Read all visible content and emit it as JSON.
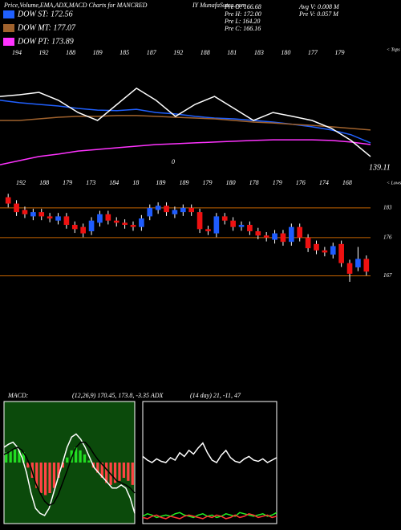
{
  "header": {
    "title": "Price,Volume,EMA,ADX,MACD Charts for MANCRED",
    "title2": "IY MunafaSutra.com",
    "stats_left": [
      "Pre  O: 166.68",
      "Pre  H: 172.00",
      "Pre  L: 164.20",
      "Pre  C: 166.16"
    ],
    "stats_right": [
      "Avg  V: 0.008 M",
      "Pre  V: 0.057 M"
    ],
    "macd_label": "MACD:",
    "macd_values": "(12,26,9) 170.45, 173.8, -3.35 ADX",
    "adx_values": "(14 day) 21, -11, 47"
  },
  "chart_data": [
    {
      "type": "line",
      "ylim": [
        135,
        200
      ],
      "tops_label": "< Tops",
      "lows_label": "< Lows",
      "tops": [
        "194",
        "192",
        "188",
        "189",
        "185",
        "187",
        "192",
        "188",
        "181",
        "183",
        "180",
        "177",
        "179"
      ],
      "lows": [
        "192",
        "188",
        "179",
        "173",
        "184",
        "18",
        "189",
        "189",
        "179",
        "180",
        "178",
        "179",
        "176",
        "174",
        "168"
      ],
      "annotations": [
        "0",
        "139.11"
      ],
      "series": [
        {
          "name": "DOW ST: 172.56",
          "color": "#2060ff",
          "values": [
            170.5,
            169.3,
            168.5,
            167.7,
            166.5,
            165.7,
            165.4,
            166.1,
            164.5,
            163.8,
            162.6,
            161.8,
            161.4,
            160.6,
            159.8,
            158.7,
            157.5,
            155.9,
            153.6,
            149.6
          ]
        },
        {
          "name": "DOW MT: 177.07",
          "color": "#a0622d",
          "values": [
            160.6,
            160.6,
            161.4,
            162.2,
            162.6,
            162.6,
            163,
            163,
            162.6,
            162.2,
            161.8,
            161.4,
            160.6,
            159.8,
            159.4,
            158.7,
            158.2,
            157.5,
            156.7,
            155.9
          ]
        },
        {
          "name": "DOW PT: 173.89",
          "color": "#ff33ff",
          "values": [
            138.9,
            140.9,
            142.9,
            144.1,
            145.6,
            146.4,
            147.2,
            148,
            148.8,
            149.2,
            149.6,
            150,
            150.4,
            150.8,
            151.1,
            151.1,
            151.1,
            150.8,
            150,
            148.8
          ]
        },
        {
          "color": "#ffffff",
          "values": [
            172.4,
            173.2,
            174.4,
            170.5,
            164.5,
            160.6,
            168.5,
            176.4,
            170.5,
            162.6,
            168.5,
            172.4,
            166.5,
            160.6,
            164.5,
            162.6,
            160.6,
            156.7,
            150.8,
            142.9
          ]
        }
      ]
    },
    {
      "type": "candlestick",
      "ylim": [
        162,
        187.5
      ],
      "yticks": [
        183,
        176,
        167
      ],
      "up_color": "#1e5cff",
      "down_color": "#ee1111",
      "grid_color": "#c86400",
      "open": [
        185.5,
        184,
        182.5,
        181,
        182,
        181,
        180,
        181,
        179,
        178.5,
        177.5,
        179.5,
        181.5,
        180,
        179.5,
        179,
        178.5,
        181,
        182.5,
        183.5,
        181.5,
        182,
        183,
        182,
        178,
        177,
        181,
        180,
        178.5,
        179,
        177.5,
        176.5,
        175.5,
        177,
        175,
        178.5,
        176,
        174.5,
        173,
        172,
        174.5,
        170,
        169,
        171
      ],
      "high": [
        186.3,
        184.8,
        183.3,
        182.8,
        182.8,
        181.8,
        181.8,
        181.8,
        179.8,
        179.3,
        180.8,
        182.3,
        182.3,
        180.8,
        180.3,
        179.8,
        181.3,
        183.8,
        184.3,
        184.3,
        183.3,
        183.8,
        183.8,
        182.8,
        178.8,
        181.8,
        181.8,
        180.8,
        179.8,
        179.8,
        178.3,
        177.3,
        177.8,
        177.8,
        179.3,
        179.3,
        176.8,
        175.3,
        173.8,
        174.8,
        175.3,
        170.8,
        173.8,
        171.8
      ],
      "low": [
        183.1,
        181.1,
        180.6,
        180.1,
        180.1,
        179.6,
        179.1,
        178.1,
        177.1,
        176.1,
        176.6,
        178.6,
        179.1,
        178.6,
        178.1,
        177.6,
        177.6,
        180.1,
        181.6,
        181.1,
        180.6,
        181.1,
        181.1,
        177.1,
        176.6,
        176.1,
        179.1,
        177.6,
        177.6,
        176.6,
        175.6,
        175.1,
        174.6,
        174.1,
        174.1,
        175.1,
        172.6,
        172.1,
        171.6,
        171.1,
        169.1,
        165.6,
        168.1,
        167.1
      ],
      "close": [
        184,
        182,
        181.5,
        182,
        181,
        180.5,
        181,
        179,
        178,
        177,
        180,
        181.5,
        180,
        179.5,
        179,
        178.5,
        180.5,
        183,
        183.5,
        182,
        182.5,
        183,
        182,
        178,
        177.5,
        181,
        180,
        178.5,
        179,
        177.5,
        176.5,
        176,
        177,
        175,
        178.5,
        176,
        173.5,
        173,
        172.5,
        174,
        170,
        167.5,
        171,
        168
      ]
    },
    {
      "type": "macd",
      "ylim": [
        -6,
        6
      ],
      "background": "#0b4a0b",
      "pos_color": "#22dd22",
      "neg_color": "#ff4444",
      "histogram": [
        1,
        1.2,
        1.3,
        1.2,
        1,
        -0.5,
        -1.5,
        -2.5,
        -3,
        -3.2,
        -3,
        -2.5,
        -1.5,
        -0.5,
        0.5,
        1.2,
        1.5,
        1.2,
        0.8,
        0.2,
        -0.5,
        -1,
        -1.5,
        -2,
        -2.2,
        -2,
        -1.8,
        -1.5,
        -1.8,
        -2.2
      ],
      "series": [
        {
          "color": "#ffffff",
          "values": [
            1.5,
            1.8,
            2,
            1.5,
            0.5,
            -1,
            -3,
            -4.5,
            -5,
            -5.2,
            -4.5,
            -3,
            -1.5,
            0,
            1.5,
            2.5,
            2.8,
            2.3,
            1.5,
            0.5,
            -0.5,
            -1,
            -1.5,
            -2,
            -2.5,
            -2.5,
            -2.2,
            -2.5,
            -3.5,
            -5
          ]
        },
        {
          "color": "#000000",
          "values": [
            0.8,
            1,
            1.3,
            1.5,
            1.2,
            0.5,
            -0.5,
            -2,
            -3,
            -3.8,
            -4.2,
            -4,
            -3.2,
            -2,
            -0.8,
            0.5,
            1.5,
            2,
            2,
            1.5,
            0.8,
            0.2,
            -0.3,
            -0.8,
            -1.3,
            -1.8,
            -2,
            -2.2,
            -2.5,
            -3
          ]
        }
      ]
    },
    {
      "type": "line",
      "ylim": [
        0,
        100
      ],
      "background": "#000000",
      "series": [
        {
          "color": "#ffffff",
          "values": [
            55,
            52,
            50,
            53,
            51,
            50,
            54,
            52,
            58,
            55,
            60,
            57,
            62,
            66,
            58,
            52,
            50,
            56,
            60,
            54,
            51,
            50,
            53,
            55,
            52,
            51,
            53,
            50,
            52,
            54
          ]
        },
        {
          "color": "#22ee22",
          "values": [
            6,
            8,
            7,
            5,
            6,
            7,
            6,
            8,
            9,
            7,
            6,
            5,
            7,
            8,
            6,
            7,
            5,
            6,
            8,
            7,
            6,
            9,
            8,
            7,
            6,
            7,
            8,
            6,
            7,
            9
          ]
        },
        {
          "color": "#ff3333",
          "values": [
            5,
            4,
            6,
            7,
            5,
            4,
            6,
            5,
            4,
            6,
            7,
            6,
            5,
            4,
            6,
            5,
            7,
            6,
            4,
            5,
            7,
            5,
            6,
            8,
            7,
            5,
            6,
            7,
            5,
            6
          ]
        }
      ]
    }
  ]
}
